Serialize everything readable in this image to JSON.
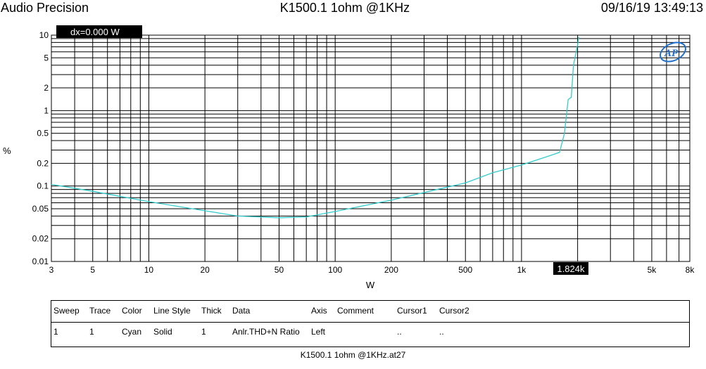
{
  "header": {
    "left": "Audio Precision",
    "center": "K1500.1 1ohm @1KHz",
    "right": "09/16/19 13:49:13"
  },
  "cursor_readout": {
    "top": "dx=0.000   W",
    "bottom": "1.824k"
  },
  "legend": {
    "headers": [
      "Sweep",
      "Trace",
      "Color",
      "Line Style",
      "Thick",
      "Data",
      "Axis",
      "Comment",
      "Cursor1",
      "Cursor2"
    ],
    "rows": [
      [
        "1",
        "1",
        "Cyan",
        "Solid",
        "1",
        "Anlr.THD+N Ratio",
        "Left",
        "",
        "..",
        ".."
      ]
    ]
  },
  "footer": "K1500.1 1ohm @1KHz.at27",
  "logo_text": "AP",
  "colors": {
    "trace": "#33cccc",
    "grid": "#000000",
    "readout_bg": "#000000",
    "readout_text": "#ffffff"
  },
  "chart_data": {
    "type": "line",
    "title": "K1500.1 1ohm @1KHz",
    "xlabel": "W",
    "ylabel": "%",
    "x_scale": "log",
    "y_scale": "log",
    "xlim": [
      3,
      8000
    ],
    "ylim": [
      0.01,
      10
    ],
    "x_ticks": [
      {
        "v": 3,
        "label": "3"
      },
      {
        "v": 5,
        "label": "5"
      },
      {
        "v": 10,
        "label": "10"
      },
      {
        "v": 20,
        "label": "20"
      },
      {
        "v": 50,
        "label": "50"
      },
      {
        "v": 100,
        "label": "100"
      },
      {
        "v": 200,
        "label": "200"
      },
      {
        "v": 500,
        "label": "500"
      },
      {
        "v": 1000,
        "label": "1k"
      },
      {
        "v": 5000,
        "label": "5k"
      },
      {
        "v": 8000,
        "label": "8k"
      }
    ],
    "y_ticks": [
      {
        "v": 10,
        "label": "10"
      },
      {
        "v": 5,
        "label": "5"
      },
      {
        "v": 2,
        "label": "2"
      },
      {
        "v": 1,
        "label": "1"
      },
      {
        "v": 0.5,
        "label": "0.5"
      },
      {
        "v": 0.2,
        "label": "0.2"
      },
      {
        "v": 0.1,
        "label": "0.1"
      },
      {
        "v": 0.05,
        "label": "0.05"
      },
      {
        "v": 0.02,
        "label": "0.02"
      },
      {
        "v": 0.01,
        "label": "0.01"
      }
    ],
    "grid": true,
    "cursor_x": 1824,
    "series": [
      {
        "name": "Anlr.THD+N Ratio",
        "x": [
          3,
          5,
          10,
          20,
          30,
          50,
          70,
          100,
          200,
          500,
          700,
          1000,
          1400,
          1600,
          1700,
          1780,
          1850,
          1900,
          1950,
          2000,
          2030
        ],
        "y": [
          0.105,
          0.085,
          0.062,
          0.047,
          0.04,
          0.038,
          0.039,
          0.046,
          0.065,
          0.11,
          0.15,
          0.19,
          0.25,
          0.28,
          0.5,
          1.4,
          1.5,
          4.0,
          5.5,
          7.5,
          9.5
        ]
      }
    ]
  }
}
